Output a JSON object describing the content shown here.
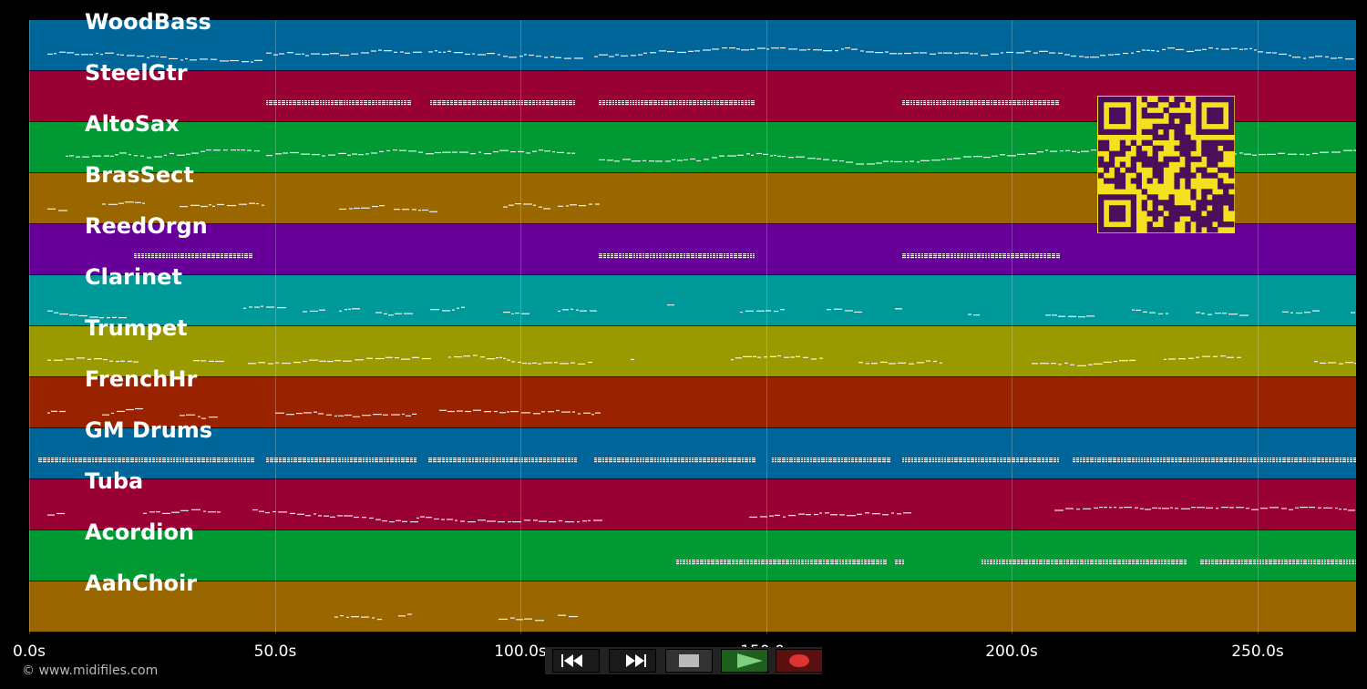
{
  "tracks": [
    {
      "name": "WoodBass",
      "color": "#006699"
    },
    {
      "name": "SteelGtr",
      "color": "#990033"
    },
    {
      "name": "AltoSax",
      "color": "#009933"
    },
    {
      "name": "BrasSect",
      "color": "#996600"
    },
    {
      "name": "ReedOrgn",
      "color": "#660099"
    },
    {
      "name": "Clarinet",
      "color": "#009999"
    },
    {
      "name": "Trumpet",
      "color": "#999900"
    },
    {
      "name": "FrenchHr",
      "color": "#992200"
    },
    {
      "name": "GM Drums",
      "color": "#006699"
    },
    {
      "name": "Tuba",
      "color": "#990033"
    },
    {
      "name": "Acordion",
      "color": "#009933"
    },
    {
      "name": "AahChoir",
      "color": "#996600"
    }
  ],
  "axis": {
    "ticks": [
      "0.0s",
      "50.0s",
      "100.0s",
      "150.0s",
      "200.0s",
      "250.0s"
    ],
    "tick_values": [
      0,
      50,
      100,
      150,
      200,
      250
    ],
    "max_seconds": 270
  },
  "copyright": "© www.midifiles.com",
  "qr_colors": {
    "fg": "#4a0f5a",
    "bg": "#f5e020"
  },
  "transport": [
    {
      "name": "rewind",
      "icon": "rewind-icon",
      "bg": "#1a1a1a"
    },
    {
      "name": "fast-forward",
      "icon": "fast-forward-icon",
      "bg": "#1a1a1a"
    },
    {
      "name": "stop",
      "icon": "stop-icon",
      "bg": "#333333"
    },
    {
      "name": "play",
      "icon": "play-icon",
      "bg": "#1e5f1e"
    },
    {
      "name": "record",
      "icon": "record-icon",
      "bg": "#5a1010"
    }
  ]
}
